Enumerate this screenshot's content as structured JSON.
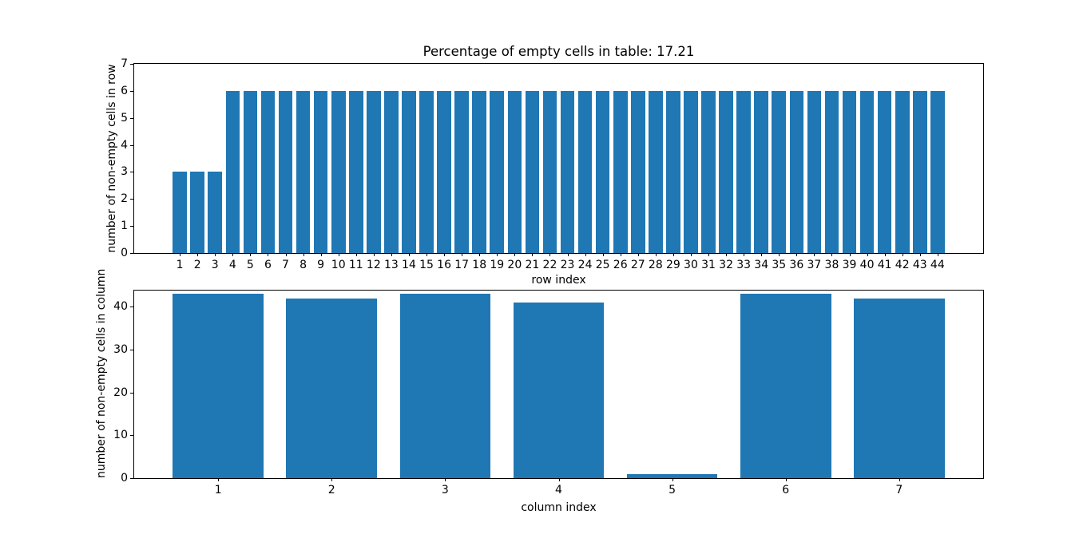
{
  "figure": {
    "background": "#ffffff",
    "bar_color": "#1f77b4",
    "spine_color": "#000000",
    "text_color": "#000000"
  },
  "chart_data": [
    {
      "type": "bar",
      "title": "Percentage of empty cells in table: 17.21",
      "xlabel": "row index",
      "ylabel": "number of non-empty cells in row",
      "categories": [
        1,
        2,
        3,
        4,
        5,
        6,
        7,
        8,
        9,
        10,
        11,
        12,
        13,
        14,
        15,
        16,
        17,
        18,
        19,
        20,
        21,
        22,
        23,
        24,
        25,
        26,
        27,
        28,
        29,
        30,
        31,
        32,
        33,
        34,
        35,
        36,
        37,
        38,
        39,
        40,
        41,
        42,
        43,
        44
      ],
      "values": [
        3,
        3,
        3,
        6,
        6,
        6,
        6,
        6,
        6,
        6,
        6,
        6,
        6,
        6,
        6,
        6,
        6,
        6,
        6,
        6,
        6,
        6,
        6,
        6,
        6,
        6,
        6,
        6,
        6,
        6,
        6,
        6,
        6,
        6,
        6,
        6,
        6,
        6,
        6,
        6,
        6,
        6,
        6,
        6
      ],
      "bar_width": 0.8,
      "xlim": [
        -1.59,
        46.59
      ],
      "ylim": [
        0,
        7
      ],
      "yticks": [
        0,
        1,
        2,
        3,
        4,
        5,
        6,
        7
      ],
      "grid": false,
      "legend": null
    },
    {
      "type": "bar",
      "title": "",
      "xlabel": "column index",
      "ylabel": "number of non-empty cells in column",
      "categories": [
        1,
        2,
        3,
        4,
        5,
        6,
        7
      ],
      "values": [
        43,
        42,
        43,
        41,
        1,
        43,
        42
      ],
      "bar_width": 0.8,
      "xlim": [
        0.26,
        7.74
      ],
      "ylim": [
        0,
        43.8
      ],
      "yticks": [
        0,
        10,
        20,
        30,
        40
      ],
      "grid": false,
      "legend": null
    }
  ]
}
